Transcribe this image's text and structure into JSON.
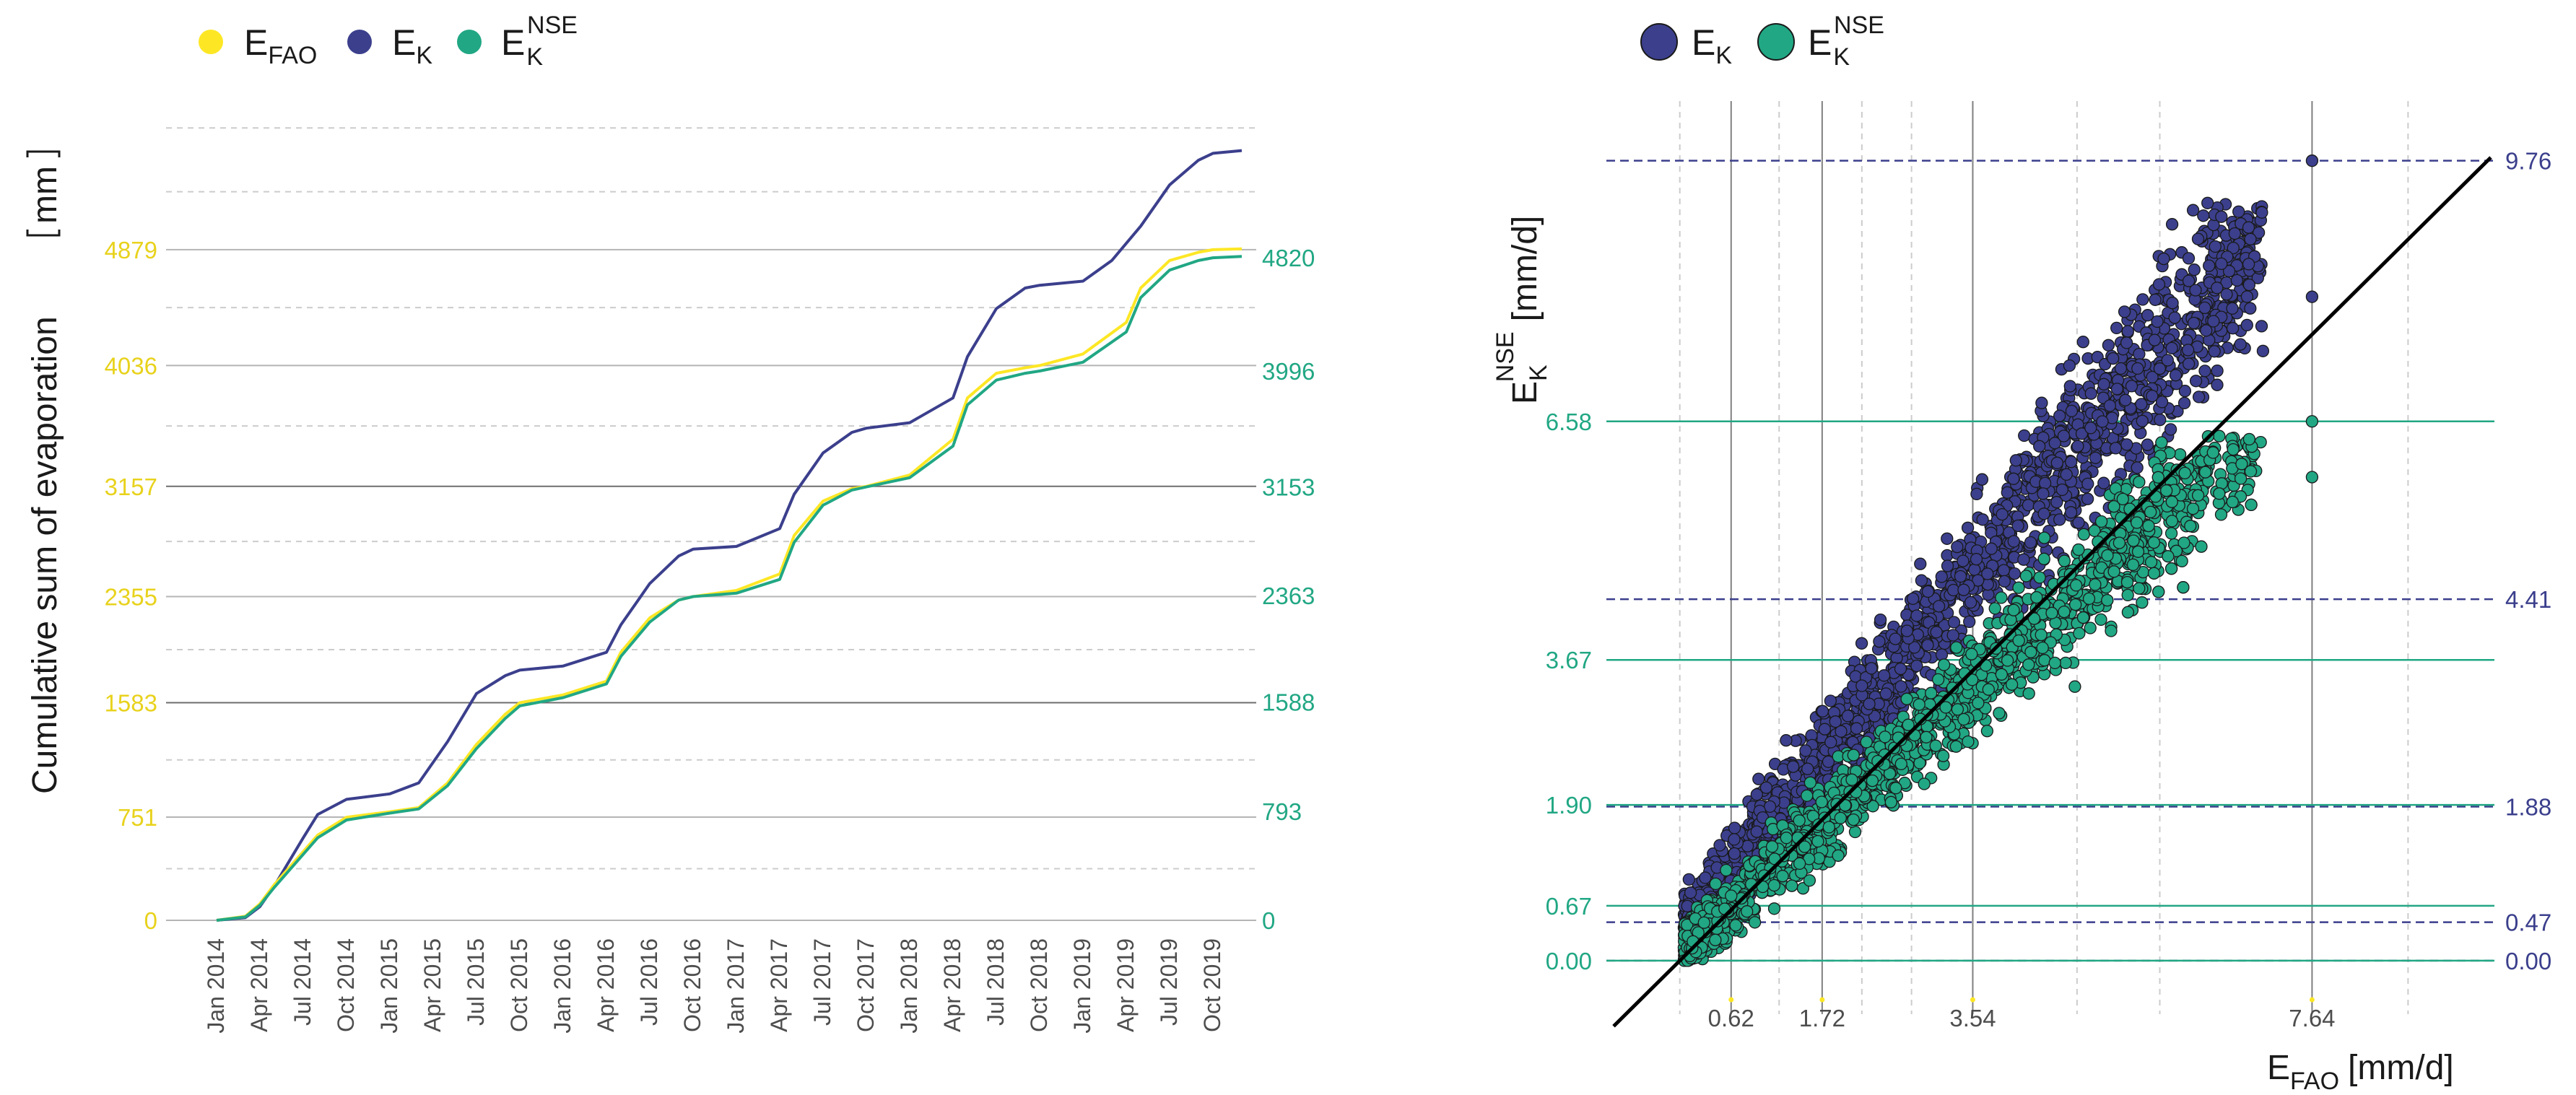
{
  "colors": {
    "efao": "#fde725",
    "ek": "#3b3f8c",
    "eknse": "#21a784",
    "grid_solid": "#8c8c8c",
    "grid_dashed": "#cccccc",
    "identity": "#000000"
  },
  "chart_data": [
    {
      "type": "line",
      "title": "",
      "ylabel": "Cumulative sum of evaporation",
      "ylabel_unit": "mm",
      "xlabel": "",
      "legend": [
        {
          "key": "efao",
          "base": "E",
          "sub": "FAO",
          "sup": ""
        },
        {
          "key": "ek",
          "base": "E",
          "sub": "K",
          "sup": ""
        },
        {
          "key": "eknse",
          "base": "E",
          "sub": "K",
          "sup": "NSE"
        }
      ],
      "x_ticks": [
        "Jan 2014",
        "Apr 2014",
        "Jul 2014",
        "Oct 2014",
        "Jan 2015",
        "Apr 2015",
        "Jul 2015",
        "Oct 2015",
        "Jan 2016",
        "Apr 2016",
        "Jul 2016",
        "Oct 2016",
        "Jan 2017",
        "Apr 2017",
        "Jul 2017",
        "Oct 2017",
        "Jan 2018",
        "Apr 2018",
        "Jul 2018",
        "Oct 2018",
        "Jan 2019",
        "Apr 2019",
        "Jul 2019",
        "Oct 2019"
      ],
      "x_range_months": [
        0,
        72
      ],
      "y_range": [
        0,
        5750
      ],
      "left_axis": {
        "ticks": [
          0,
          751,
          1583,
          2355,
          3157,
          4036,
          4879
        ],
        "labels": [
          "0",
          "751",
          "1583",
          "2355",
          "3157",
          "4036",
          "4879"
        ]
      },
      "right_axis": {
        "ticks": [
          0,
          793,
          1588,
          2363,
          3153,
          3996,
          4820
        ],
        "labels": [
          "0",
          "793",
          "1588",
          "2363",
          "3153",
          "3996",
          "4820"
        ]
      },
      "series": [
        {
          "name": "EFAO",
          "key": "efao",
          "x_months": [
            0,
            2,
            3,
            4,
            6,
            7,
            9,
            12,
            14,
            16,
            18,
            20,
            21,
            24,
            27,
            28,
            30,
            32,
            33,
            36,
            39,
            40,
            42,
            44,
            45,
            48,
            51,
            52,
            54,
            56,
            57,
            60,
            63,
            64,
            66,
            68,
            69,
            71
          ],
          "values": [
            0,
            30,
            120,
            260,
            500,
            620,
            750,
            790,
            820,
            1000,
            1280,
            1500,
            1583,
            1640,
            1740,
            1950,
            2200,
            2330,
            2355,
            2400,
            2520,
            2800,
            3050,
            3140,
            3157,
            3240,
            3500,
            3800,
            3980,
            4020,
            4036,
            4120,
            4350,
            4600,
            4800,
            4860,
            4879,
            4885
          ]
        },
        {
          "name": "EK",
          "key": "ek",
          "x_months": [
            0,
            2,
            3,
            4,
            6,
            7,
            9,
            12,
            14,
            16,
            18,
            20,
            21,
            24,
            27,
            28,
            30,
            32,
            33,
            36,
            39,
            40,
            42,
            44,
            45,
            48,
            51,
            52,
            54,
            56,
            57,
            60,
            62,
            64,
            66,
            68,
            69,
            71
          ],
          "values": [
            0,
            20,
            100,
            250,
            600,
            770,
            880,
            920,
            1000,
            1300,
            1650,
            1780,
            1820,
            1850,
            1950,
            2150,
            2450,
            2650,
            2700,
            2720,
            2850,
            3100,
            3400,
            3550,
            3580,
            3620,
            3800,
            4100,
            4450,
            4600,
            4620,
            4650,
            4800,
            5050,
            5350,
            5530,
            5580,
            5600
          ]
        },
        {
          "name": "EKNSE",
          "key": "eknse",
          "x_months": [
            0,
            2,
            3,
            4,
            6,
            7,
            9,
            12,
            14,
            16,
            18,
            20,
            21,
            24,
            27,
            28,
            30,
            32,
            33,
            36,
            39,
            40,
            42,
            44,
            45,
            48,
            51,
            52,
            54,
            56,
            57,
            60,
            63,
            64,
            66,
            68,
            69,
            71
          ],
          "values": [
            0,
            25,
            110,
            240,
            480,
            600,
            730,
            780,
            810,
            980,
            1250,
            1470,
            1560,
            1620,
            1720,
            1920,
            2170,
            2330,
            2355,
            2380,
            2480,
            2750,
            3020,
            3130,
            3153,
            3220,
            3450,
            3750,
            3930,
            3980,
            3996,
            4060,
            4280,
            4530,
            4730,
            4800,
            4820,
            4830
          ]
        }
      ]
    },
    {
      "type": "scatter",
      "title": "",
      "xlabel": "EFAO [mm/d]",
      "xlabel_parts": {
        "base": "E",
        "sub": "FAO",
        "unit": "[mm/d]"
      },
      "ylabel": "EKNSE [mm/d]",
      "ylabel_parts": {
        "base": "E",
        "sub": "K",
        "sup": "NSE",
        "unit": "[mm/d]"
      },
      "legend": [
        {
          "key": "ek",
          "base": "E",
          "sub": "K",
          "sup": ""
        },
        {
          "key": "eknse",
          "base": "E",
          "sub": "K",
          "sup": "NSE"
        }
      ],
      "x_range": [
        -0.8,
        9.8
      ],
      "y_range": [
        -0.3,
        10.4
      ],
      "x_ticks": [
        0.62,
        1.72,
        3.54,
        7.64
      ],
      "x_tick_labels": [
        "0.62",
        "1.72",
        "3.54",
        "7.64"
      ],
      "x_dashed_grid": [
        0,
        1.2,
        2.2,
        2.8,
        4.8,
        5.8,
        8.8
      ],
      "left_ticks_eknse": [
        0.0,
        0.67,
        1.9,
        3.67,
        6.58
      ],
      "left_tick_labels": [
        "0.00",
        "0.67",
        "1.90",
        "3.67",
        "6.58"
      ],
      "right_ticks_ek": [
        0.0,
        0.47,
        1.88,
        4.41,
        9.76
      ],
      "right_tick_labels": [
        "0.00",
        "0.47",
        "1.88",
        "4.41",
        "9.76"
      ],
      "identity_line": true,
      "point_count_estimate": 3600,
      "series": [
        {
          "name": "EK",
          "key": "ek",
          "approx_relation": "EK ≈ 1.25·EFAO + 0.2 ± 0.9"
        },
        {
          "name": "EKNSE",
          "key": "eknse",
          "approx_relation": "EKNSE ≈ 0.95·EFAO + 0.1 ± 0.7"
        }
      ],
      "extra_points": [
        {
          "key": "ek",
          "x": 7.64,
          "y": 9.76
        },
        {
          "key": "ek",
          "x": 7.64,
          "y": 8.1
        },
        {
          "key": "eknse",
          "x": 7.64,
          "y": 6.58
        },
        {
          "key": "eknse",
          "x": 7.64,
          "y": 5.9
        }
      ]
    }
  ]
}
